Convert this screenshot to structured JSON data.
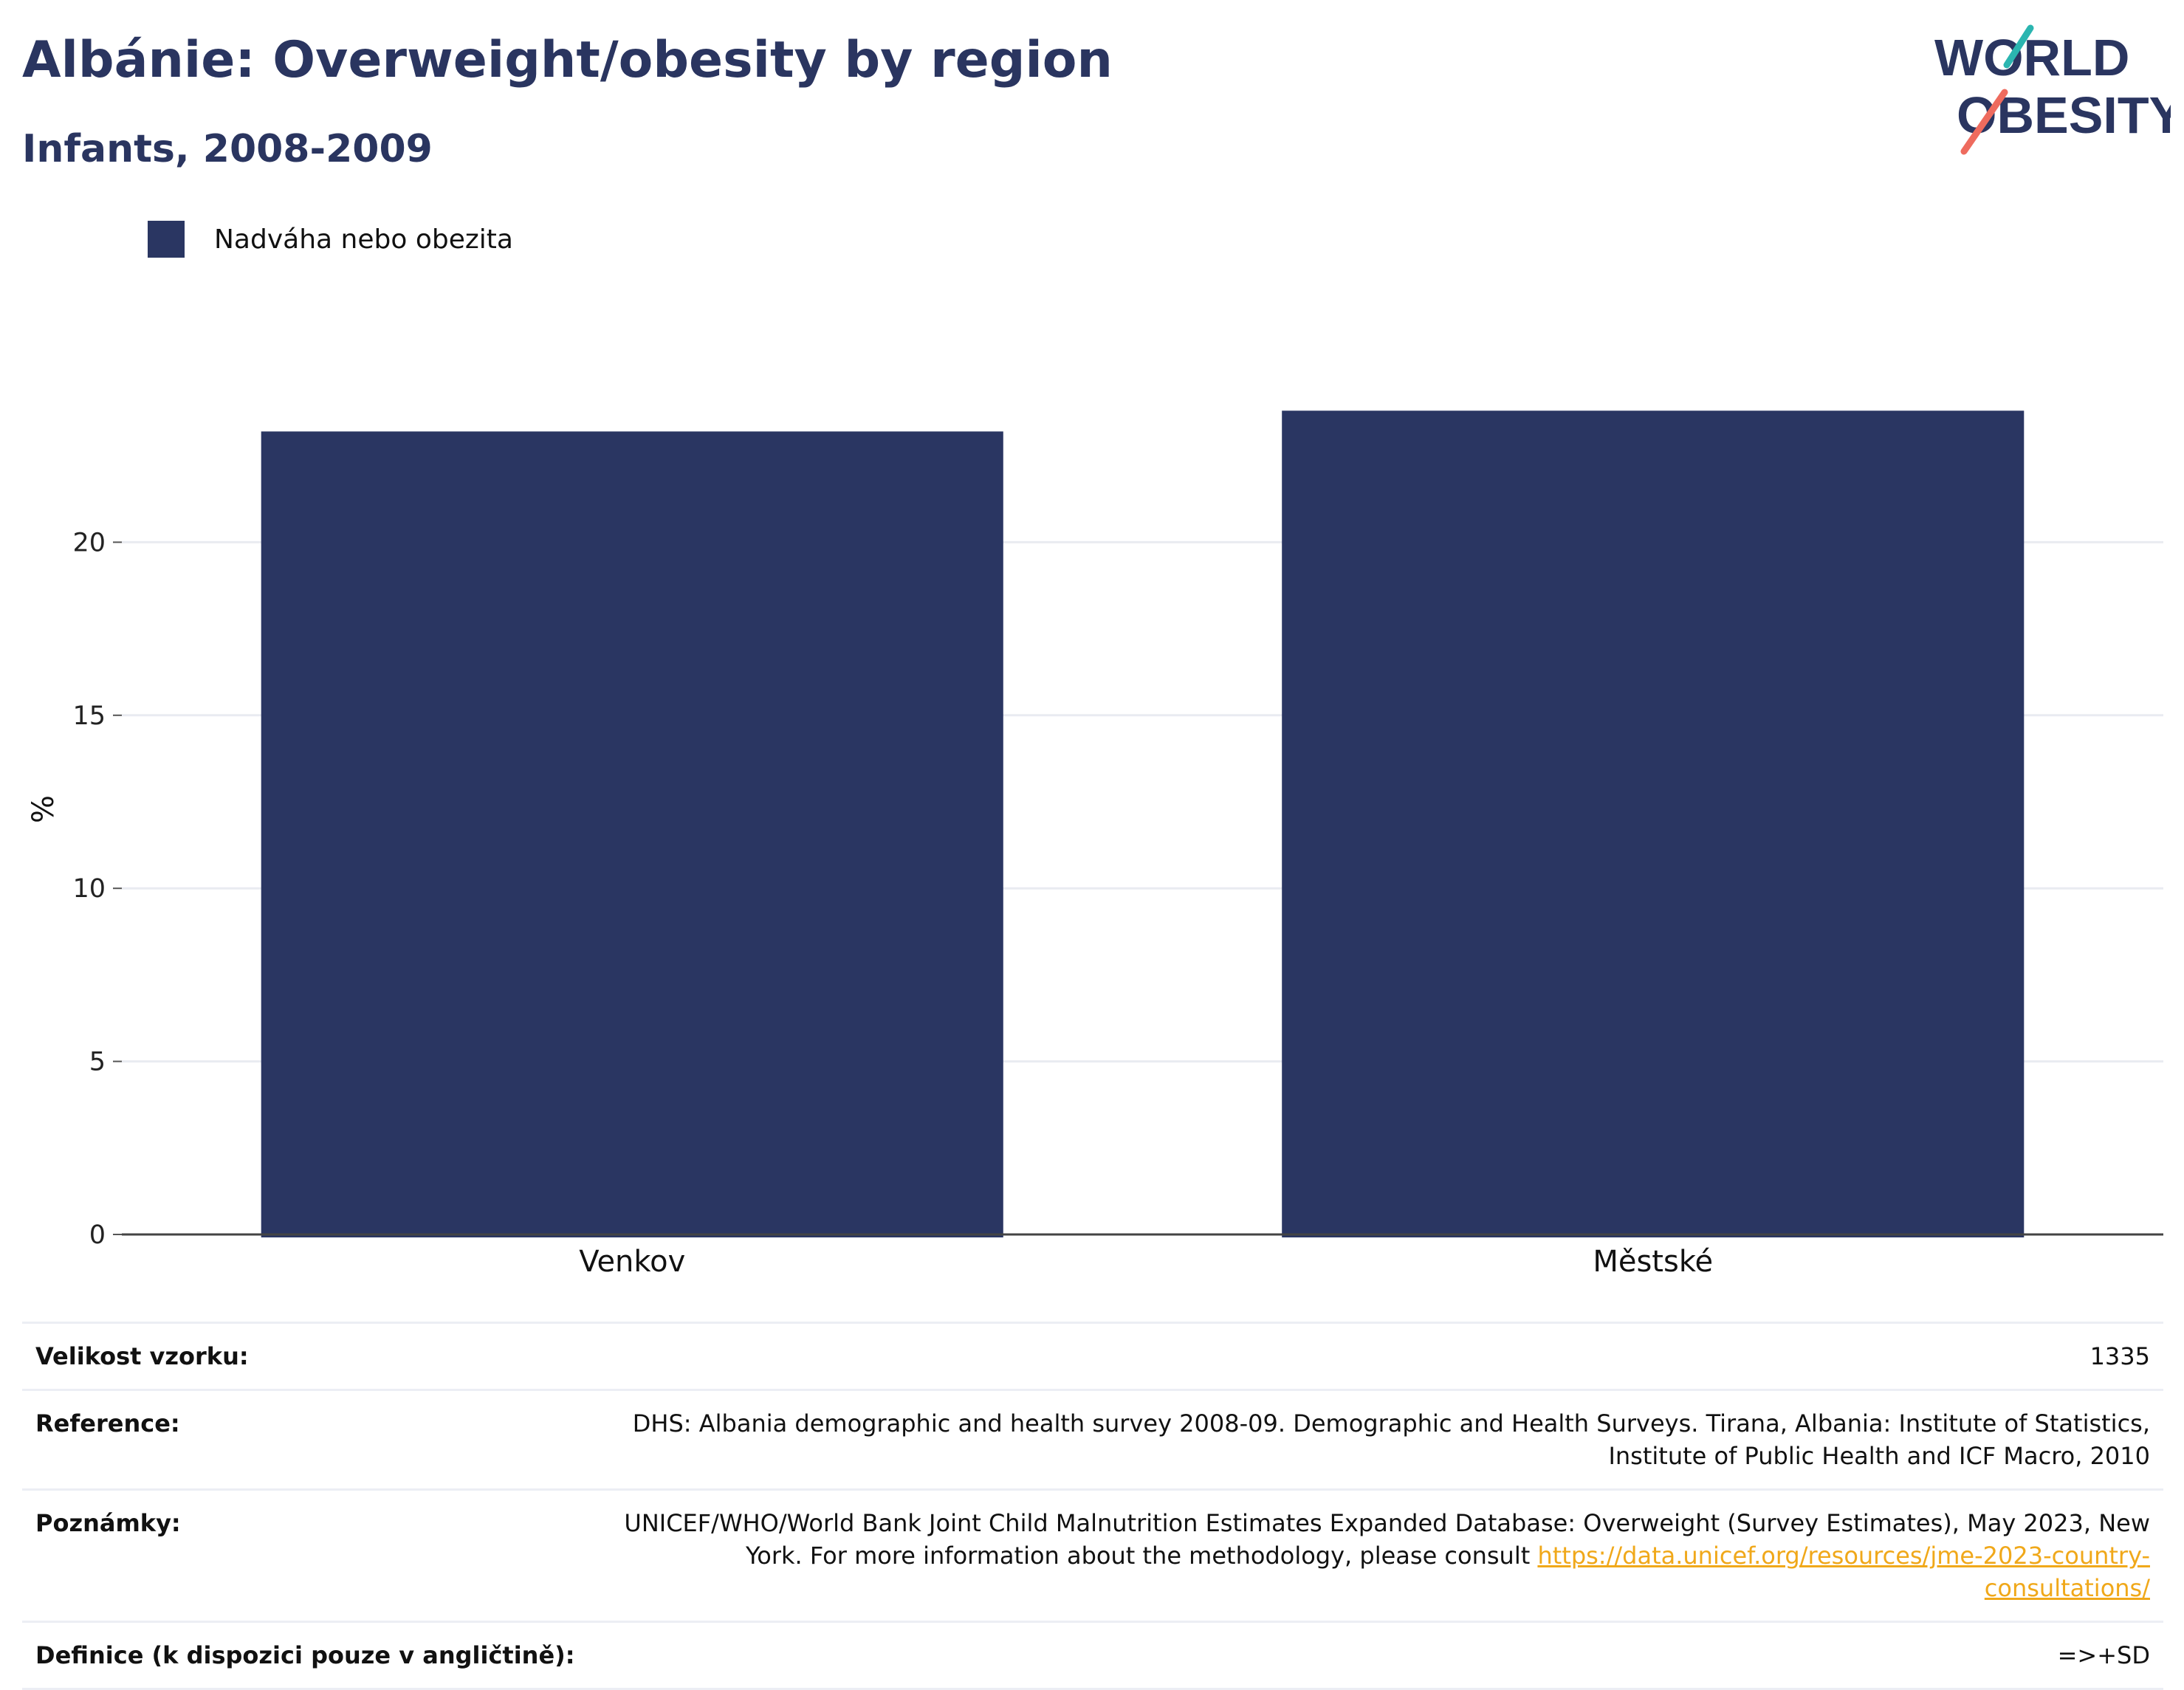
{
  "header": {
    "title": "Albánie: Overweight/obesity by region",
    "subtitle": "Infants, 2008-2009"
  },
  "logo": {
    "line1": "WORLD",
    "line2": "OBESITY"
  },
  "legend": {
    "label": "Nadváha nebo obezita"
  },
  "colors": {
    "bar": "#2a3662",
    "title": "#2a3560",
    "logo_teal": "#2bb5b0",
    "logo_coral": "#ee6b5e",
    "link": "#f0a81a"
  },
  "chart_data": {
    "type": "bar",
    "categories": [
      "Venkov",
      "Městské"
    ],
    "series": [
      {
        "name": "Nadváha nebo obezita",
        "values": [
          23.2,
          23.8
        ]
      }
    ],
    "ylabel": "%",
    "ylim": [
      0,
      25
    ],
    "yticks": [
      0,
      5,
      10,
      15,
      20
    ],
    "grid": true,
    "legend_position": "top-left"
  },
  "info": {
    "sample_size": {
      "label": "Velikost vzorku:",
      "value": "1335"
    },
    "reference": {
      "label": "Reference:",
      "value": "DHS: Albania demographic and health survey 2008-09. Demographic and Health Surveys. Tirana, Albania: Institute of Statistics, Institute of Public Health and ICF Macro, 2010"
    },
    "notes": {
      "label": "Poznámky:",
      "value": "UNICEF/WHO/World Bank Joint Child Malnutrition Estimates Expanded Database: Overweight (Survey Estimates), May 2023, New York. For more information about the methodology, please consult ",
      "link": "https://data.unicef.org/resources/jme-2023-country-consultations/"
    },
    "definition": {
      "label": "Definice (k dispozici pouze v angličtině):",
      "value": "=>+SD"
    }
  }
}
